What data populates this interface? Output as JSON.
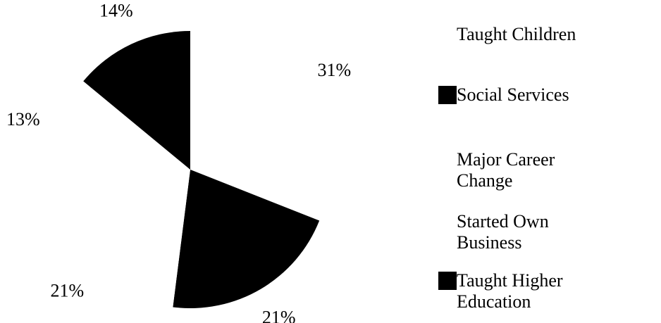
{
  "chart_data": {
    "type": "pie",
    "categories": [
      "Taught Children",
      "Social Services",
      "Major Career Change",
      "Started Own Business",
      "Taught Higher Education"
    ],
    "values": [
      31,
      21,
      21,
      13,
      14
    ],
    "value_labels": [
      "31%",
      "21%",
      "21%",
      "13%",
      "14%"
    ],
    "colors": [
      "#ffffff",
      "#000000",
      "#ffffff",
      "#ffffff",
      "#000000"
    ]
  }
}
